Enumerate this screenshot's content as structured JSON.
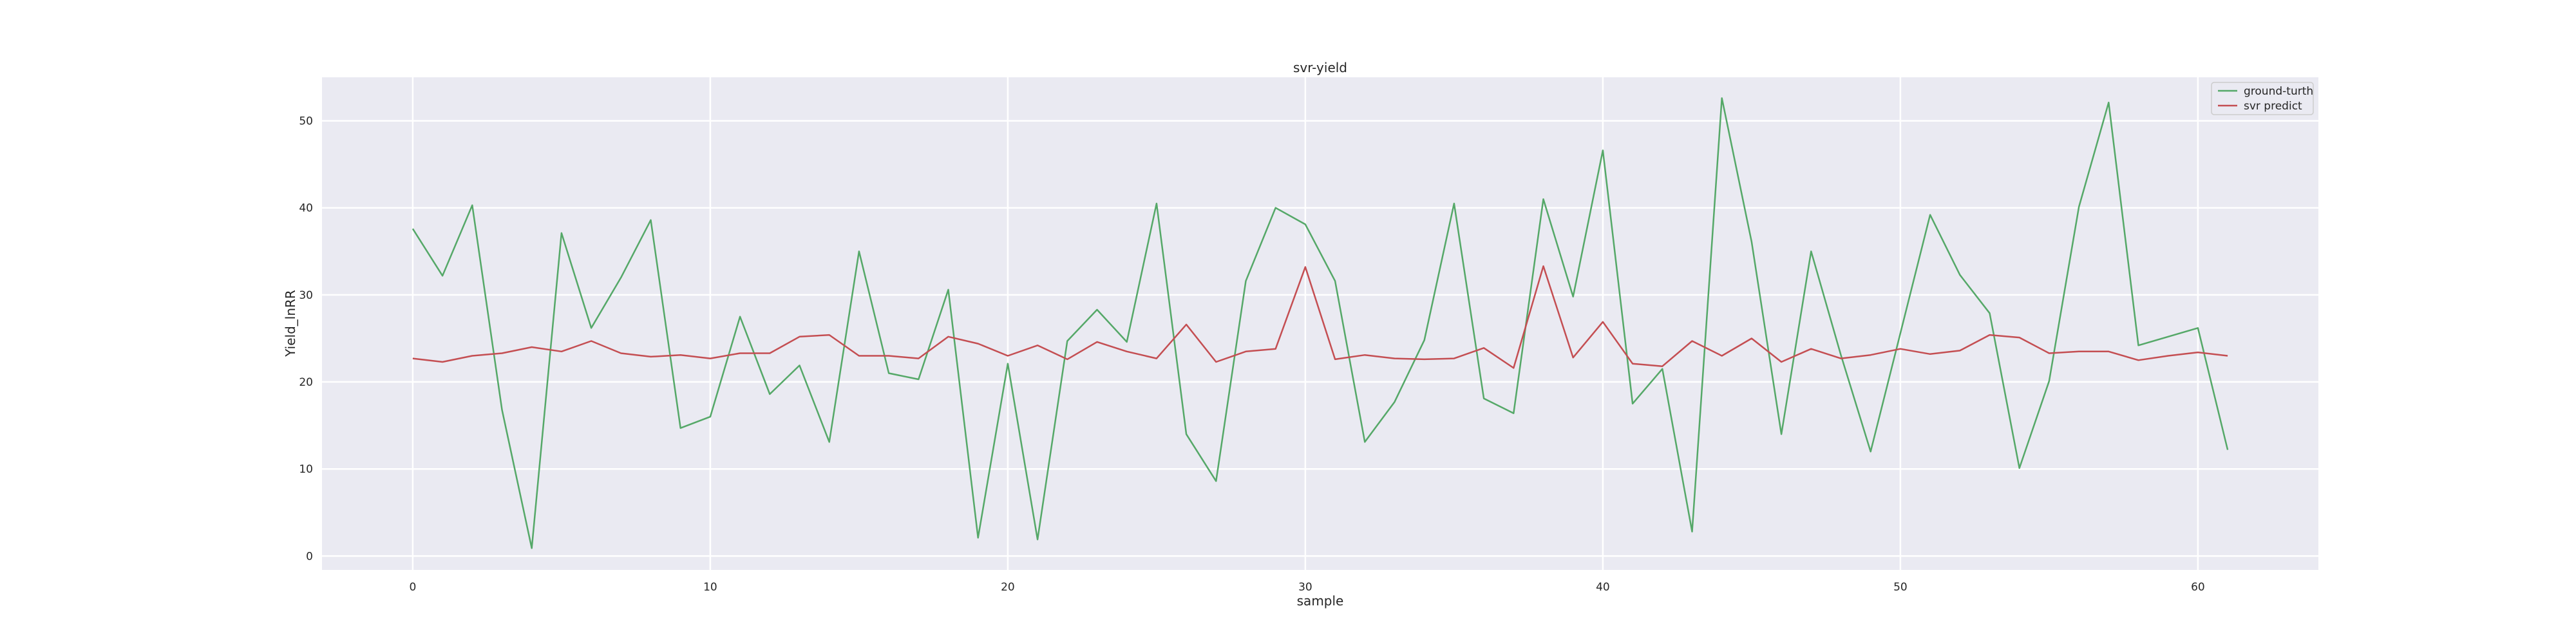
{
  "chart_data": {
    "type": "line",
    "title": "svr-yield",
    "xlabel": "sample",
    "ylabel": "Yield_lnRR",
    "xlim": [
      -3.05,
      64.05
    ],
    "ylim": [
      -1.6,
      55.0
    ],
    "xticks": [
      0,
      10,
      20,
      30,
      40,
      50,
      60
    ],
    "yticks": [
      0,
      10,
      20,
      30,
      40,
      50
    ],
    "grid": true,
    "legend_position": "upper-right",
    "colors": {
      "background": "#eaeaf2",
      "grid": "#ffffff",
      "ground_truth": "#55a868",
      "svr_predict": "#c44e52"
    },
    "x": [
      0,
      1,
      2,
      3,
      4,
      5,
      6,
      7,
      8,
      9,
      10,
      11,
      12,
      13,
      14,
      15,
      16,
      17,
      18,
      19,
      20,
      21,
      22,
      23,
      24,
      25,
      26,
      27,
      28,
      29,
      30,
      31,
      32,
      33,
      34,
      35,
      36,
      37,
      38,
      39,
      40,
      41,
      42,
      43,
      44,
      45,
      46,
      47,
      48,
      49,
      50,
      51,
      52,
      53,
      54,
      55,
      56,
      57,
      58,
      59,
      60,
      61
    ],
    "series": [
      {
        "name": "ground-turth",
        "color": "#55a868",
        "values": [
          37.6,
          32.2,
          40.3,
          16.8,
          0.9,
          37.1,
          26.2,
          32.0,
          38.6,
          14.7,
          16.0,
          27.5,
          18.6,
          21.9,
          13.1,
          35.0,
          21.0,
          20.3,
          30.6,
          2.1,
          22.1,
          1.9,
          24.7,
          28.3,
          24.6,
          40.5,
          14.0,
          8.6,
          31.6,
          40.0,
          38.1,
          31.6,
          13.1,
          17.7,
          24.8,
          40.5,
          18.1,
          16.4,
          41.0,
          29.8,
          46.6,
          17.5,
          21.5,
          2.8,
          52.6,
          36.1,
          14.0,
          35.0,
          23.1,
          12.0,
          25.6,
          39.2,
          32.3,
          27.9,
          10.1,
          20.1,
          40.1,
          52.1,
          24.2,
          25.2,
          26.2,
          12.2
        ]
      },
      {
        "name": "svr predict",
        "color": "#c44e52",
        "values": [
          22.7,
          22.3,
          23.0,
          23.3,
          24.0,
          23.5,
          24.7,
          23.3,
          22.9,
          23.1,
          22.7,
          23.3,
          23.3,
          25.2,
          25.4,
          23.0,
          23.0,
          22.7,
          25.2,
          24.4,
          23.0,
          24.2,
          22.6,
          24.6,
          23.5,
          22.7,
          26.6,
          22.3,
          23.5,
          23.8,
          33.2,
          22.6,
          23.1,
          22.7,
          22.6,
          22.7,
          23.9,
          21.6,
          33.3,
          22.8,
          26.9,
          22.1,
          21.8,
          24.7,
          23.0,
          25.0,
          22.3,
          23.8,
          22.7,
          23.1,
          23.8,
          23.2,
          23.6,
          25.4,
          25.1,
          23.3,
          23.5,
          23.5,
          22.5,
          23.0,
          23.4,
          23.0
        ]
      }
    ]
  }
}
